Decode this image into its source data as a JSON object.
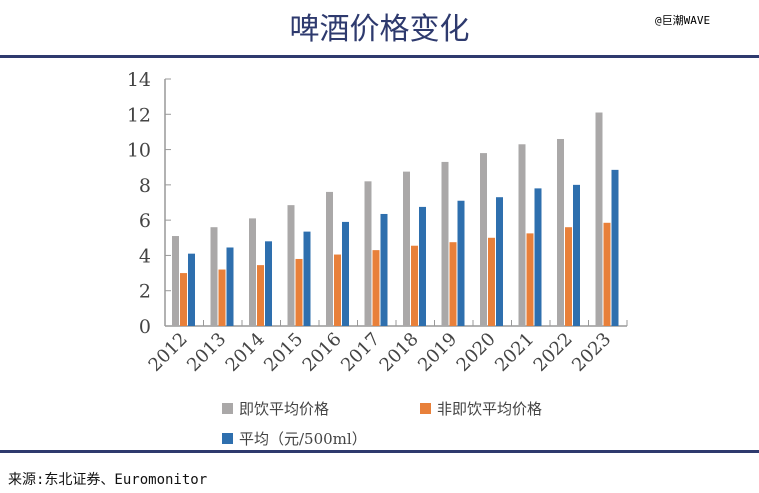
{
  "title": "啤酒价格变化",
  "watermark": "@巨潮WAVE",
  "source": "来源:东北证券、Euromonitor",
  "chart_data": {
    "type": "bar",
    "categories": [
      "2012",
      "2013",
      "2014",
      "2015",
      "2016",
      "2017",
      "2018",
      "2019",
      "2020",
      "2021",
      "2022",
      "2023"
    ],
    "series": [
      {
        "name": "即饮平均价格",
        "color": "#aaa8a8",
        "values": [
          5.1,
          5.6,
          6.1,
          6.85,
          7.6,
          8.2,
          8.75,
          9.3,
          9.8,
          10.3,
          10.6,
          12.1
        ]
      },
      {
        "name": "非即饮平均价格",
        "color": "#e8803a",
        "values": [
          3.0,
          3.2,
          3.45,
          3.8,
          4.05,
          4.3,
          4.55,
          4.75,
          5.0,
          5.25,
          5.6,
          5.85
        ]
      },
      {
        "name": "平均（元/500ml）",
        "color": "#2e6fae",
        "values": [
          4.1,
          4.45,
          4.8,
          5.35,
          5.9,
          6.35,
          6.75,
          7.1,
          7.3,
          7.8,
          8.0,
          8.85
        ]
      }
    ],
    "yticks": [
      "0",
      "2",
      "4",
      "6",
      "8",
      "10",
      "12",
      "14"
    ],
    "ylim": [
      0,
      14
    ],
    "grid": false,
    "legend": "bottom"
  }
}
